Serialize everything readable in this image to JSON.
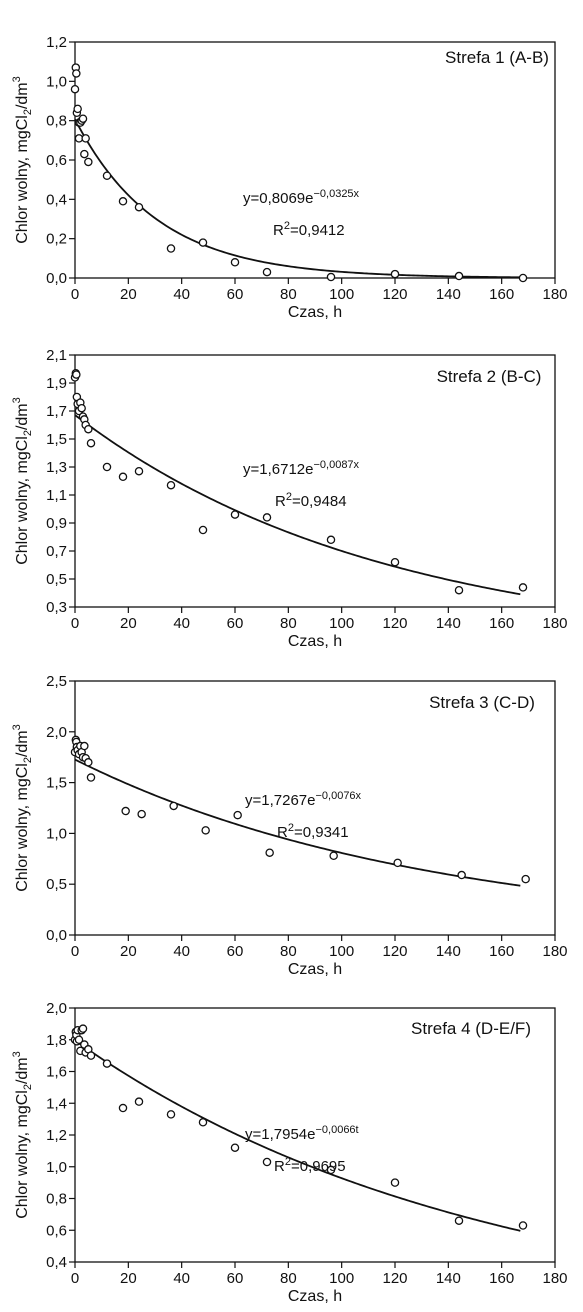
{
  "chart_data": [
    {
      "type": "scatter",
      "zone_label": "Strefa 1 (A-B)",
      "xlabel": "Czas, h",
      "ylabel_parts": [
        "Chlor wolny, mgCl",
        "2",
        "/dm",
        "3"
      ],
      "xlim": [
        0,
        180
      ],
      "ylim": [
        0,
        1.2
      ],
      "xticks": [
        0,
        20,
        40,
        60,
        80,
        100,
        120,
        140,
        160,
        180
      ],
      "yticks": [
        "0,0",
        "0,2",
        "0,4",
        "0,6",
        "0,8",
        "1,0",
        "1,2"
      ],
      "equation": {
        "prefix": "y=0,8069e",
        "exponent": "−0,0325x"
      },
      "r2": {
        "prefix": "R",
        "sup": "2",
        "value": "=0,9412"
      },
      "fit": {
        "a": 0.8069,
        "b": -0.0325,
        "x_end": 167
      },
      "points": [
        [
          0,
          0.96
        ],
        [
          0.3,
          1.07
        ],
        [
          0.5,
          1.04
        ],
        [
          0.7,
          0.84
        ],
        [
          1,
          0.86
        ],
        [
          1.5,
          0.79
        ],
        [
          2,
          0.79
        ],
        [
          2.5,
          0.8
        ],
        [
          3,
          0.81
        ],
        [
          1.5,
          0.71
        ],
        [
          3.5,
          0.63
        ],
        [
          4,
          0.71
        ],
        [
          5,
          0.59
        ],
        [
          12,
          0.52
        ],
        [
          18,
          0.39
        ],
        [
          24,
          0.36
        ],
        [
          36,
          0.15
        ],
        [
          48,
          0.18
        ],
        [
          60,
          0.08
        ],
        [
          72,
          0.03
        ],
        [
          96,
          0.005
        ],
        [
          120,
          0.02
        ],
        [
          144,
          0.01
        ],
        [
          168,
          0.0
        ]
      ]
    },
    {
      "type": "scatter",
      "zone_label": "Strefa 2 (B-C)",
      "xlabel": "Czas, h",
      "ylabel_parts": [
        "Chlor wolny, mgCl",
        "2",
        "/dm",
        "3"
      ],
      "xlim": [
        0,
        180
      ],
      "ylim": [
        0.3,
        2.1
      ],
      "xticks": [
        0,
        20,
        40,
        60,
        80,
        100,
        120,
        140,
        160,
        180
      ],
      "yticks": [
        "0,3",
        "0,5",
        "0,7",
        "0,9",
        "1,1",
        "1,3",
        "1,5",
        "1,7",
        "1,9",
        "2,1"
      ],
      "equation": {
        "prefix": "y=1,6712e",
        "exponent": "−0,0087x"
      },
      "r2": {
        "prefix": "R",
        "sup": "2",
        "value": "=0,9484"
      },
      "fit": {
        "a": 1.6712,
        "b": -0.0087,
        "x_end": 167
      },
      "points": [
        [
          0,
          1.94
        ],
        [
          0.3,
          1.97
        ],
        [
          0.5,
          1.96
        ],
        [
          0.7,
          1.8
        ],
        [
          1,
          1.75
        ],
        [
          1.5,
          1.7
        ],
        [
          2,
          1.76
        ],
        [
          2.5,
          1.72
        ],
        [
          3,
          1.66
        ],
        [
          3.5,
          1.64
        ],
        [
          4,
          1.6
        ],
        [
          5,
          1.57
        ],
        [
          6,
          1.47
        ],
        [
          12,
          1.3
        ],
        [
          18,
          1.23
        ],
        [
          24,
          1.27
        ],
        [
          36,
          1.17
        ],
        [
          48,
          0.85
        ],
        [
          60,
          0.96
        ],
        [
          72,
          0.94
        ],
        [
          96,
          0.78
        ],
        [
          120,
          0.62
        ],
        [
          144,
          0.42
        ],
        [
          168,
          0.44
        ]
      ]
    },
    {
      "type": "scatter",
      "zone_label": "Strefa 3 (C-D)",
      "xlabel": "Czas, h",
      "ylabel_parts": [
        "Chlor wolny, mgCl",
        "2",
        "/dm",
        "3"
      ],
      "xlim": [
        0,
        180
      ],
      "ylim": [
        0,
        2.5
      ],
      "xticks": [
        0,
        20,
        40,
        60,
        80,
        100,
        120,
        140,
        160,
        180
      ],
      "yticks": [
        "0,0",
        "0,5",
        "1,0",
        "1,5",
        "2,0",
        "2,5"
      ],
      "equation": {
        "prefix": "y=1,7267e",
        "exponent": "−0,0076x"
      },
      "r2": {
        "prefix": "R",
        "sup": "2",
        "value": "=0,9341"
      },
      "fit": {
        "a": 1.7267,
        "b": -0.0076,
        "x_end": 167
      },
      "points": [
        [
          0,
          1.8
        ],
        [
          0.3,
          1.92
        ],
        [
          0.5,
          1.9
        ],
        [
          0.7,
          1.85
        ],
        [
          1,
          1.82
        ],
        [
          1.5,
          1.78
        ],
        [
          2,
          1.86
        ],
        [
          2.5,
          1.8
        ],
        [
          3,
          1.75
        ],
        [
          3.5,
          1.86
        ],
        [
          4,
          1.74
        ],
        [
          5,
          1.7
        ],
        [
          6,
          1.55
        ],
        [
          19,
          1.22
        ],
        [
          25,
          1.19
        ],
        [
          37,
          1.27
        ],
        [
          49,
          1.03
        ],
        [
          61,
          1.18
        ],
        [
          73,
          0.81
        ],
        [
          97,
          0.78
        ],
        [
          121,
          0.71
        ],
        [
          145,
          0.59
        ],
        [
          169,
          0.55
        ]
      ]
    },
    {
      "type": "scatter",
      "zone_label": "Strefa 4 (D-E/F)",
      "xlabel": "Czas, h",
      "ylabel_parts": [
        "Chlor wolny, mgCl",
        "2",
        "/dm",
        "3"
      ],
      "xlim": [
        0,
        180
      ],
      "ylim": [
        0.4,
        2.0
      ],
      "xticks": [
        0,
        20,
        40,
        60,
        80,
        100,
        120,
        140,
        160,
        180
      ],
      "yticks": [
        "0,4",
        "0,6",
        "0,8",
        "1,0",
        "1,2",
        "1,4",
        "1,6",
        "1,8",
        "2,0"
      ],
      "equation": {
        "prefix": "y=1,7954e",
        "exponent": "−0,0066t"
      },
      "r2": {
        "prefix": "R",
        "sup": "2",
        "value": "=0,9695"
      },
      "fit": {
        "a": 1.7954,
        "b": -0.0066,
        "x_end": 167
      },
      "points": [
        [
          0,
          1.8
        ],
        [
          0.3,
          1.85
        ],
        [
          0.5,
          1.83
        ],
        [
          0.7,
          1.79
        ],
        [
          1,
          1.86
        ],
        [
          1.5,
          1.8
        ],
        [
          2,
          1.73
        ],
        [
          2.5,
          1.86
        ],
        [
          3,
          1.87
        ],
        [
          3.5,
          1.77
        ],
        [
          4,
          1.72
        ],
        [
          5,
          1.74
        ],
        [
          6,
          1.7
        ],
        [
          12,
          1.65
        ],
        [
          18,
          1.37
        ],
        [
          24,
          1.41
        ],
        [
          36,
          1.33
        ],
        [
          48,
          1.28
        ],
        [
          60,
          1.12
        ],
        [
          72,
          1.03
        ],
        [
          96,
          0.98
        ],
        [
          120,
          0.9
        ],
        [
          144,
          0.66
        ],
        [
          168,
          0.63
        ]
      ]
    }
  ]
}
